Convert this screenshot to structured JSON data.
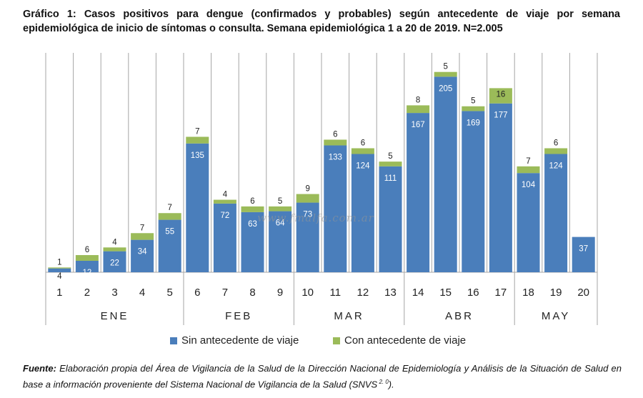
{
  "title": "Gráfico 1: Casos positivos para dengue (confirmados y probables) según antecedente de viaje por semana epidemiológica de inicio de síntomas o consulta. Semana epidemiológica 1 a 20 de 2019. N=2.005",
  "watermark": "www.fmalfa.com.ar",
  "chart_data": {
    "type": "bar",
    "stacked": true,
    "categories": [
      "1",
      "2",
      "3",
      "4",
      "5",
      "6",
      "7",
      "8",
      "9",
      "10",
      "11",
      "12",
      "13",
      "14",
      "15",
      "16",
      "17",
      "18",
      "19",
      "20"
    ],
    "month_groups": [
      {
        "label": "ENE",
        "weeks": [
          1,
          5
        ]
      },
      {
        "label": "FEB",
        "weeks": [
          6,
          9
        ]
      },
      {
        "label": "MAR",
        "weeks": [
          10,
          13
        ]
      },
      {
        "label": "ABR",
        "weeks": [
          14,
          17
        ]
      },
      {
        "label": "MAY",
        "weeks": [
          18,
          20
        ]
      }
    ],
    "series": [
      {
        "name": "Sin antecedente de viaje",
        "color": "#4a7ebb",
        "values": [
          4,
          12,
          22,
          34,
          55,
          135,
          72,
          63,
          64,
          73,
          133,
          124,
          111,
          167,
          205,
          169,
          177,
          104,
          124,
          37
        ]
      },
      {
        "name": "Con antecedente de viaje",
        "color": "#9bbb59",
        "values": [
          1,
          6,
          4,
          7,
          7,
          7,
          4,
          6,
          5,
          9,
          6,
          6,
          5,
          8,
          5,
          5,
          16,
          7,
          6,
          0
        ]
      }
    ],
    "ylim": [
      0,
      230
    ],
    "grid": "vertical",
    "legend": "bottom"
  },
  "source": {
    "label": "Fuente:",
    "text": " Elaboración propia del Área de Vigilancia de la Salud de la Dirección Nacional de Epidemiología y Análisis de la Situación de Salud en base a información proveniente del Sistema Nacional de Vigilancia de la Salud (SNVS",
    "sup": " 2. 0",
    "end": ")."
  }
}
